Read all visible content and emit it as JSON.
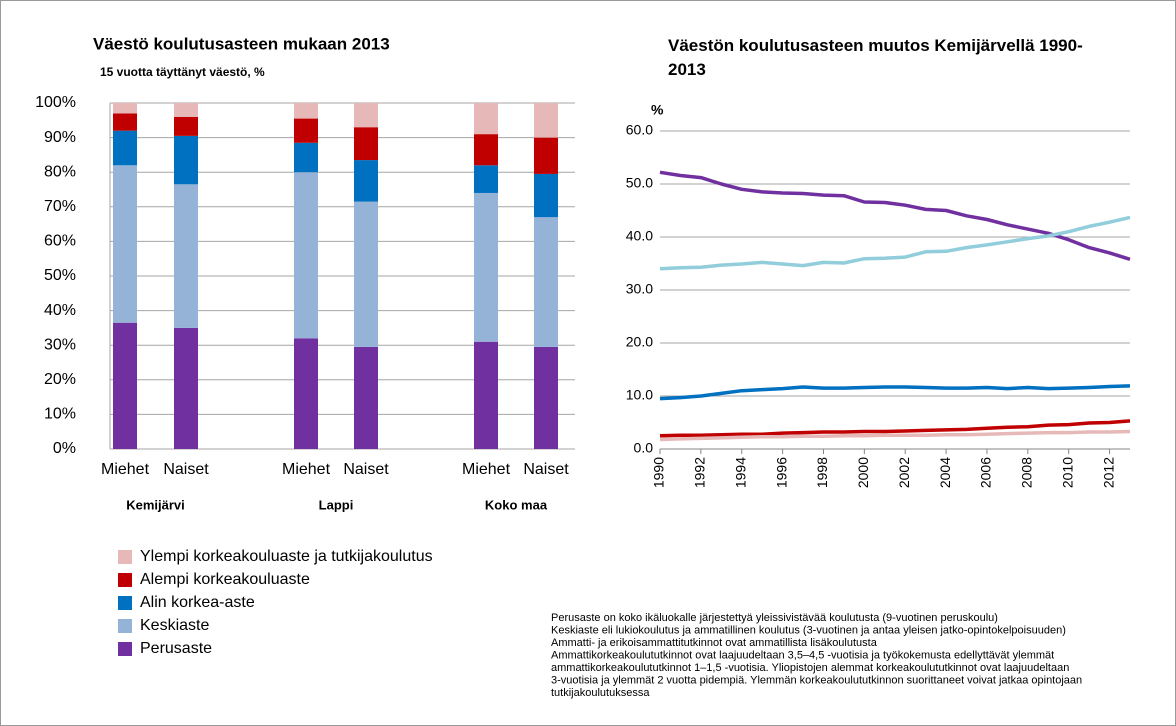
{
  "chart_data": [
    {
      "type": "stacked_bar",
      "title": "Väestö koulutusasteen mukaan 2013",
      "subtitle": "15 vuotta täyttänyt väestö, %",
      "categories": [
        "Miehet",
        "Naiset",
        "Miehet",
        "Naiset",
        "Miehet",
        "Naiset"
      ],
      "groups": [
        "Kemijärvi",
        "Lappi",
        "Koko maa"
      ],
      "ylim": [
        0,
        100
      ],
      "yticks": [
        {
          "value": 0,
          "label": "0%"
        },
        {
          "value": 10,
          "label": "10%"
        },
        {
          "value": 20,
          "label": "20%"
        },
        {
          "value": 30,
          "label": "30%"
        },
        {
          "value": 40,
          "label": "40%"
        },
        {
          "value": 50,
          "label": "50%"
        },
        {
          "value": 60,
          "label": "60%"
        },
        {
          "value": 70,
          "label": "70%"
        },
        {
          "value": 80,
          "label": "80%"
        },
        {
          "value": 90,
          "label": "90%"
        },
        {
          "value": 100,
          "label": "100%"
        }
      ],
      "grid": true,
      "series": [
        {
          "name": "Perusaste",
          "color": "#7030a0",
          "values": [
            36.5,
            35,
            32,
            29.5,
            31,
            29.5
          ]
        },
        {
          "name": "Keskiaste",
          "color": "#95b3d7",
          "values": [
            45.5,
            41.5,
            48,
            42,
            43,
            37.5
          ]
        },
        {
          "name": "Alin korkea-aste",
          "color": "#0070c0",
          "values": [
            10,
            14,
            8.5,
            12,
            8,
            12.5
          ]
        },
        {
          "name": "Alempi korkeakouluaste",
          "color": "#c00000",
          "values": [
            5,
            5.5,
            7,
            9.5,
            9,
            10.5
          ]
        },
        {
          "name": "Ylempi korkeakouluaste ja tutkijakoulutus",
          "color": "#e6b9b8",
          "values": [
            3,
            4,
            4.5,
            7,
            9,
            10
          ]
        }
      ]
    },
    {
      "type": "line",
      "title": "Väestön koulutusasteen muutos Kemijärvellä 1990-2013",
      "ylabel": "%",
      "x": [
        1990,
        1991,
        1992,
        1993,
        1994,
        1995,
        1996,
        1997,
        1998,
        1999,
        2000,
        2001,
        2002,
        2003,
        2004,
        2005,
        2006,
        2007,
        2008,
        2009,
        2010,
        2011,
        2012,
        2013
      ],
      "xlim": [
        1990,
        2013
      ],
      "xticks": [
        1990,
        1992,
        1994,
        1996,
        1998,
        2000,
        2002,
        2004,
        2006,
        2008,
        2010,
        2012
      ],
      "ylim": [
        0,
        60
      ],
      "yticks": [
        {
          "value": 0,
          "label": "0.0"
        },
        {
          "value": 10,
          "label": "10.0"
        },
        {
          "value": 20,
          "label": "20.0"
        },
        {
          "value": 30,
          "label": "30.0"
        },
        {
          "value": 40,
          "label": "40.0"
        },
        {
          "value": 50,
          "label": "50.0"
        },
        {
          "value": 60,
          "label": "60.0"
        }
      ],
      "grid": true,
      "series": [
        {
          "color": "#7030a0",
          "values": [
            52.2,
            51.6,
            51.2,
            50.0,
            49.0,
            48.5,
            48.3,
            48.2,
            47.9,
            47.8,
            46.6,
            46.5,
            46.0,
            45.2,
            45.0,
            44.0,
            43.3,
            42.3,
            41.5,
            40.7,
            39.5,
            38.0,
            37.0,
            35.8
          ]
        },
        {
          "color": "#92cddc",
          "values": [
            34.0,
            34.2,
            34.3,
            34.7,
            34.9,
            35.2,
            34.9,
            34.6,
            35.2,
            35.1,
            35.9,
            36.0,
            36.2,
            37.2,
            37.3,
            38.0,
            38.5,
            39.1,
            39.7,
            40.2,
            41.0,
            42.0,
            42.8,
            43.7
          ]
        },
        {
          "color": "#0070c0",
          "values": [
            9.5,
            9.7,
            10.0,
            10.5,
            11.0,
            11.2,
            11.4,
            11.7,
            11.5,
            11.5,
            11.6,
            11.7,
            11.7,
            11.6,
            11.5,
            11.5,
            11.6,
            11.4,
            11.6,
            11.4,
            11.5,
            11.6,
            11.8,
            11.9
          ]
        },
        {
          "color": "#c00000",
          "values": [
            2.5,
            2.6,
            2.6,
            2.7,
            2.8,
            2.8,
            3.0,
            3.1,
            3.2,
            3.2,
            3.3,
            3.3,
            3.4,
            3.5,
            3.6,
            3.7,
            3.9,
            4.1,
            4.2,
            4.5,
            4.6,
            4.9,
            5.0,
            5.3
          ]
        },
        {
          "color": "#e6b9b8",
          "values": [
            1.8,
            1.9,
            2.0,
            2.1,
            2.2,
            2.3,
            2.3,
            2.4,
            2.4,
            2.5,
            2.5,
            2.6,
            2.6,
            2.6,
            2.7,
            2.7,
            2.8,
            2.9,
            3.0,
            3.1,
            3.1,
            3.2,
            3.2,
            3.3
          ]
        }
      ]
    }
  ],
  "footnote": [
    "Perusaste on koko ikäluokalle järjestettyä yleissivistävää koulutusta (9-vuotinen peruskoulu)",
    "Keskiaste eli lukiokoulutus ja ammatillinen koulutus (3-vuotinen ja antaa yleisen jatko-opintokelpoisuuden)",
    "Ammatti- ja erikoisammattitutkinnot ovat ammatillista lisäkoulutusta",
    "Ammattikorkeakoulututkinnot ovat laajuudeltaan 3,5–4,5 -vuotisia ja työkokemusta edellyttävät ylemmät",
    "ammattikorkeakoulututkinnot 1–1,5 -vuotisia. Yliopistojen alemmat korkeakoulututkinnot ovat laajuudeltaan",
    "3-vuotisia ja ylemmät 2 vuotta pidempiä. Ylemmän korkeakoulututkinnon suorittaneet voivat jatkaa opintojaan",
    "tutkijakoulutuksessa"
  ]
}
